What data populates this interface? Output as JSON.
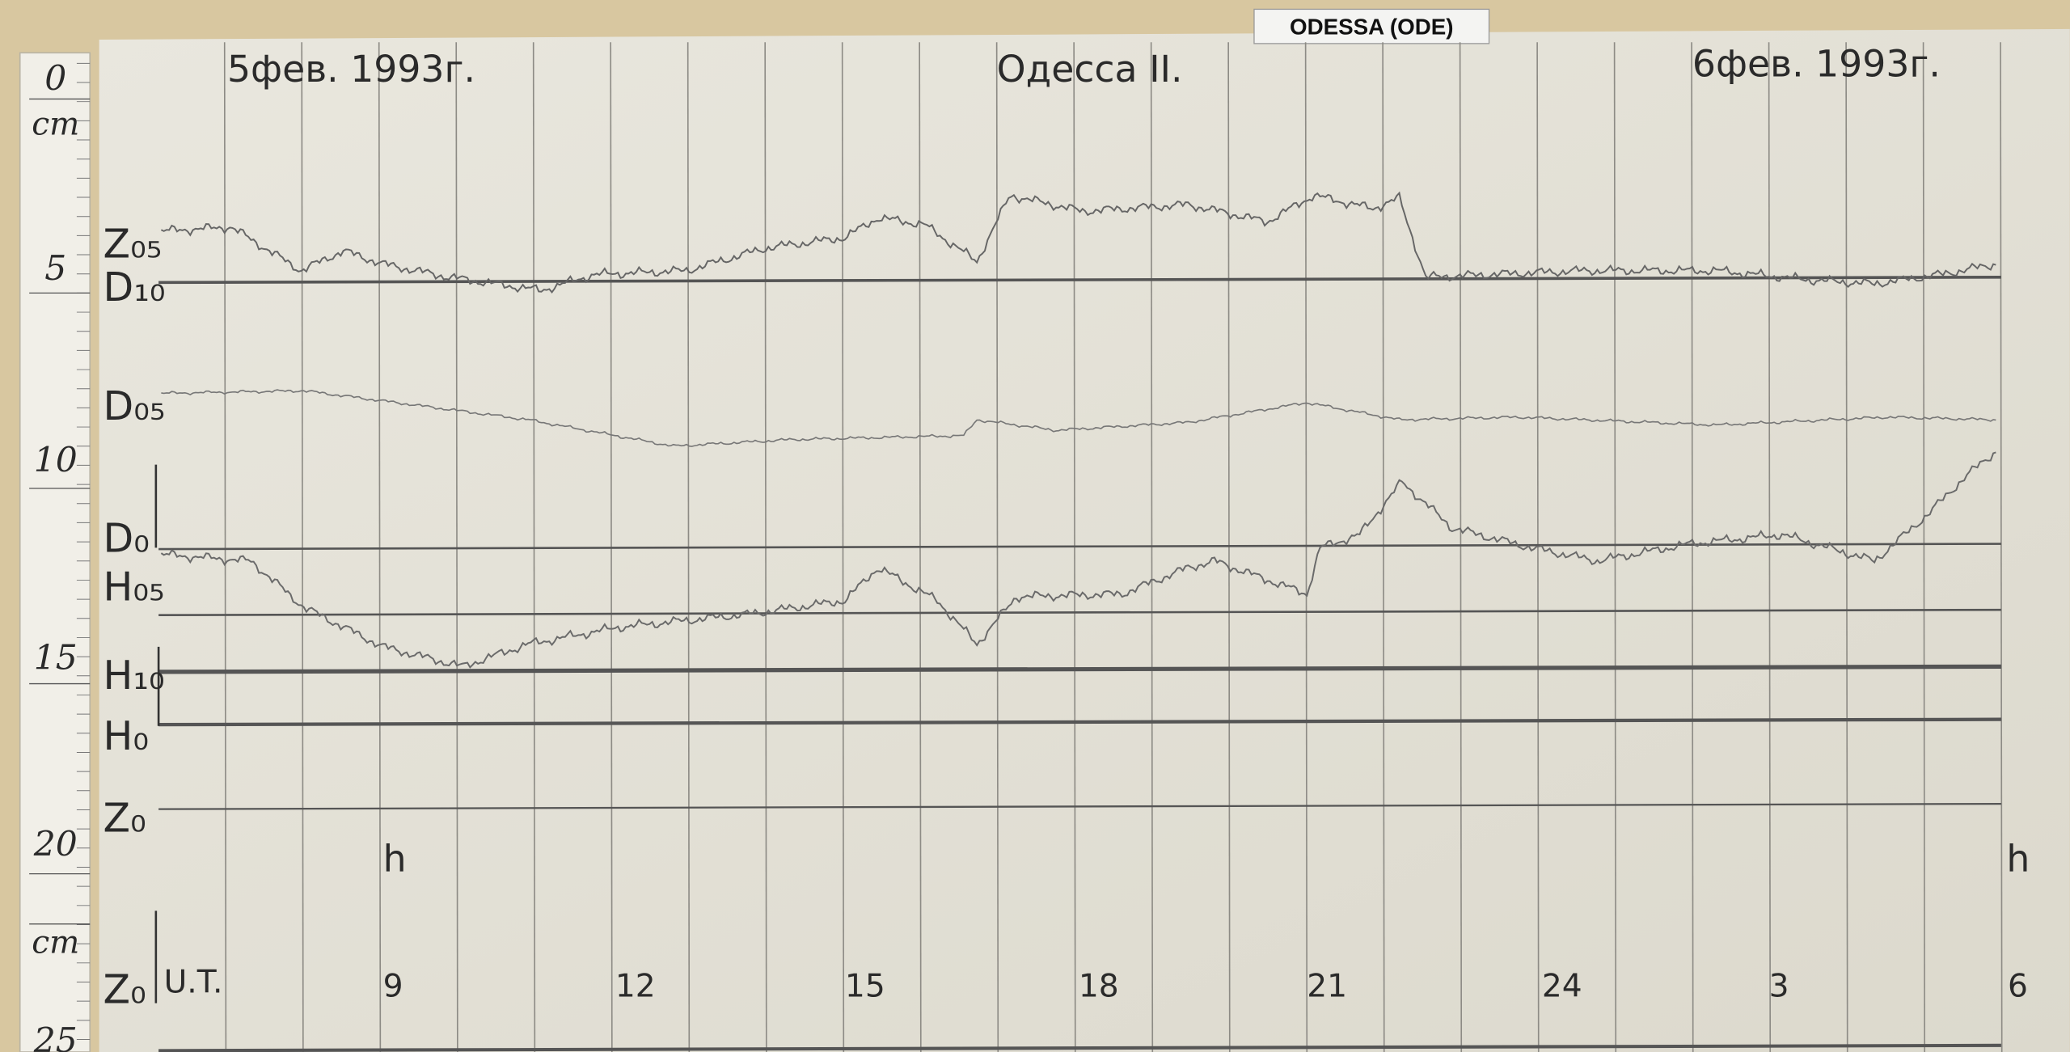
{
  "label": "ODESSA (ODE)",
  "header": {
    "left": "5фев. 1993г.",
    "center": "Одесса II.",
    "right": "6фев. 1993г."
  },
  "ruler": {
    "marks": [
      "0",
      "5",
      "10",
      "15",
      "20",
      "25"
    ],
    "units": [
      "cm",
      "cm"
    ]
  },
  "traces": {
    "labels": [
      "Z₀₅",
      "D₁₀",
      "D₀₅",
      "D₀",
      "H₀₅",
      "H₁₀",
      "H₀",
      "Z₀",
      "Z₀"
    ]
  },
  "time_axis": {
    "unit_marks": [
      "h",
      "h"
    ],
    "label": "U.T.",
    "hours": [
      "9",
      "12",
      "15",
      "18",
      "21",
      "24",
      "3",
      "6"
    ]
  }
}
